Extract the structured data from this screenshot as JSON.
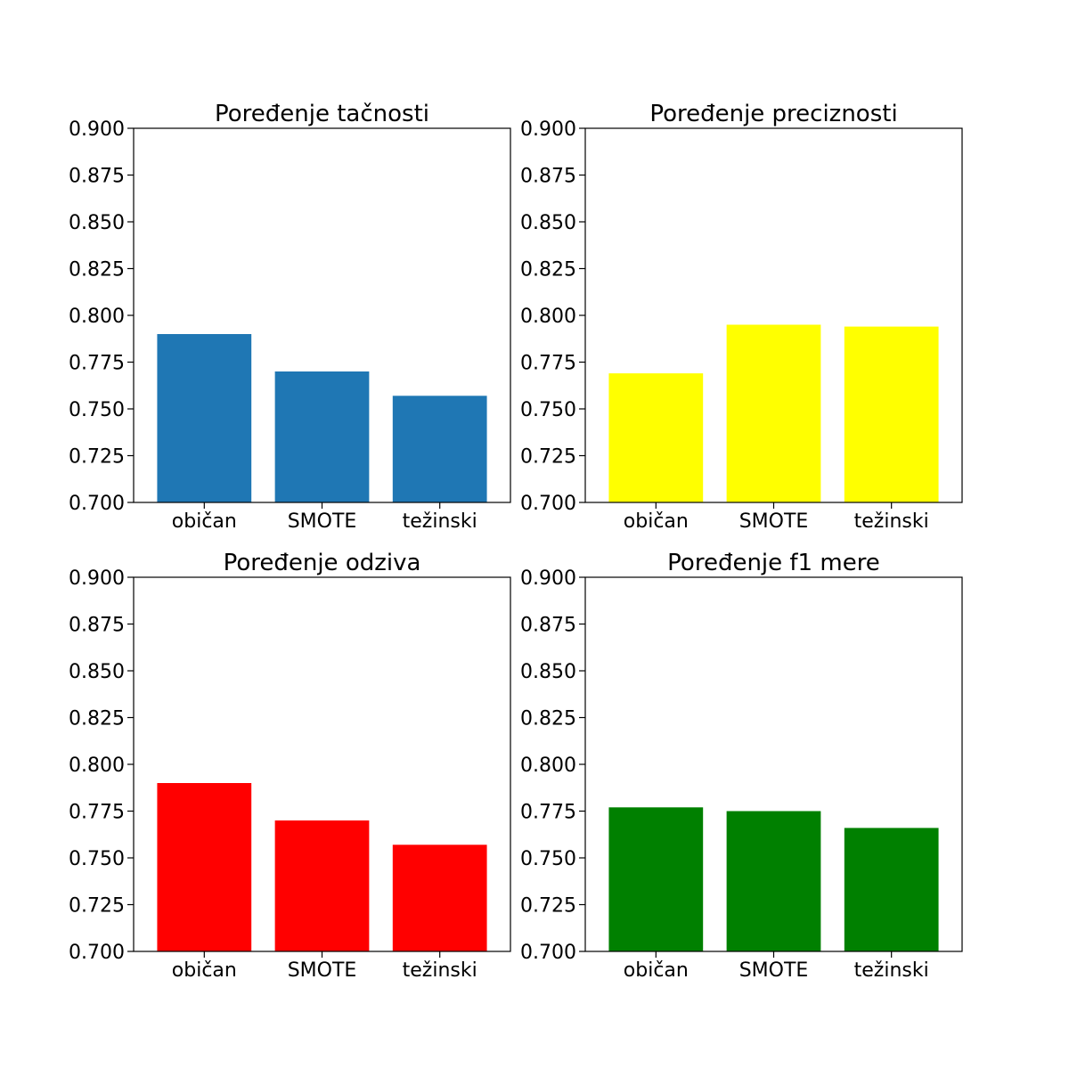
{
  "chart_data": [
    {
      "type": "bar",
      "title": "Poređenje tačnosti",
      "categories": [
        "običan",
        "SMOTE",
        "težinski"
      ],
      "values": [
        0.79,
        0.77,
        0.757
      ],
      "color": "#1f77b4",
      "ylim": [
        0.7,
        0.9
      ],
      "yticks": [
        "0.700",
        "0.725",
        "0.750",
        "0.775",
        "0.800",
        "0.825",
        "0.850",
        "0.875",
        "0.900"
      ],
      "grid": false
    },
    {
      "type": "bar",
      "title": "Poređenje preciznosti",
      "categories": [
        "običan",
        "SMOTE",
        "težinski"
      ],
      "values": [
        0.769,
        0.795,
        0.794
      ],
      "color": "#ffff00",
      "ylim": [
        0.7,
        0.9
      ],
      "yticks": [
        "0.700",
        "0.725",
        "0.750",
        "0.775",
        "0.800",
        "0.825",
        "0.850",
        "0.875",
        "0.900"
      ],
      "grid": false
    },
    {
      "type": "bar",
      "title": "Poređenje odziva",
      "categories": [
        "običan",
        "SMOTE",
        "težinski"
      ],
      "values": [
        0.79,
        0.77,
        0.757
      ],
      "color": "#ff0000",
      "ylim": [
        0.7,
        0.9
      ],
      "yticks": [
        "0.700",
        "0.725",
        "0.750",
        "0.775",
        "0.800",
        "0.825",
        "0.850",
        "0.875",
        "0.900"
      ],
      "grid": false
    },
    {
      "type": "bar",
      "title": "Poređenje f1 mere",
      "categories": [
        "običan",
        "SMOTE",
        "težinski"
      ],
      "values": [
        0.777,
        0.775,
        0.766
      ],
      "color": "#008000",
      "ylim": [
        0.7,
        0.9
      ],
      "yticks": [
        "0.700",
        "0.725",
        "0.750",
        "0.775",
        "0.800",
        "0.825",
        "0.850",
        "0.875",
        "0.900"
      ],
      "grid": false
    }
  ]
}
